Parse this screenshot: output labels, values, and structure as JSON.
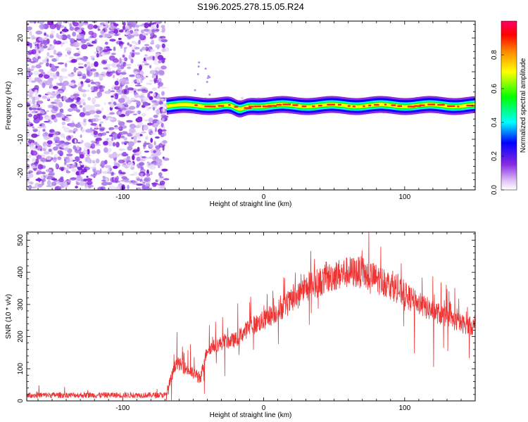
{
  "title": "S196.2025.278.15.05.R24",
  "chart_data": [
    {
      "type": "heatmap",
      "xlabel": "Height of straight line (km)",
      "ylabel": "Frequency (Hz)",
      "xlim": [
        -168,
        150
      ],
      "ylim": [
        -25,
        25
      ],
      "x_ticks": [
        "-100",
        "0",
        "100"
      ],
      "y_ticks": [
        "-20",
        "-10",
        "0",
        "10",
        "20"
      ],
      "noise_region_x": [
        -168,
        -69
      ],
      "signal_start_x": -69,
      "ridge_frequency_hz": 0,
      "colorbar": {
        "label": "Normalized spectral amplitude",
        "range": [
          0,
          1
        ],
        "ticks": [
          "0.0",
          "0.2",
          "0.4",
          "0.6",
          "0.8"
        ],
        "colors": [
          "#ffffff",
          "#e2c8f6",
          "#8a2be2",
          "#0000ff",
          "#00ffff",
          "#00ff00",
          "#ffff00",
          "#ff8800",
          "#ff0000",
          "#ff0066"
        ]
      }
    },
    {
      "type": "line",
      "xlabel": "Height of straight line (km)",
      "ylabel": "SNR (10 * v/v)",
      "xlim": [
        -168,
        150
      ],
      "ylim": [
        0,
        525
      ],
      "x_ticks": [
        "-100",
        "0",
        "100"
      ],
      "y_ticks": [
        "0",
        "100",
        "200",
        "300",
        "400",
        "500"
      ],
      "line_color": "#ee3333",
      "series": [
        {
          "name": "SNR",
          "x": [
            -168,
            -140,
            -100,
            -80,
            -69,
            -62,
            -55,
            -45,
            -40,
            -30,
            -20,
            -10,
            0,
            10,
            20,
            30,
            40,
            50,
            60,
            70,
            80,
            90,
            100,
            110,
            120,
            130,
            140,
            150
          ],
          "values": [
            18,
            18,
            18,
            18,
            18,
            120,
            100,
            70,
            160,
            180,
            190,
            230,
            250,
            280,
            310,
            350,
            370,
            390,
            400,
            400,
            380,
            360,
            330,
            300,
            280,
            260,
            240,
            230
          ]
        }
      ]
    }
  ]
}
